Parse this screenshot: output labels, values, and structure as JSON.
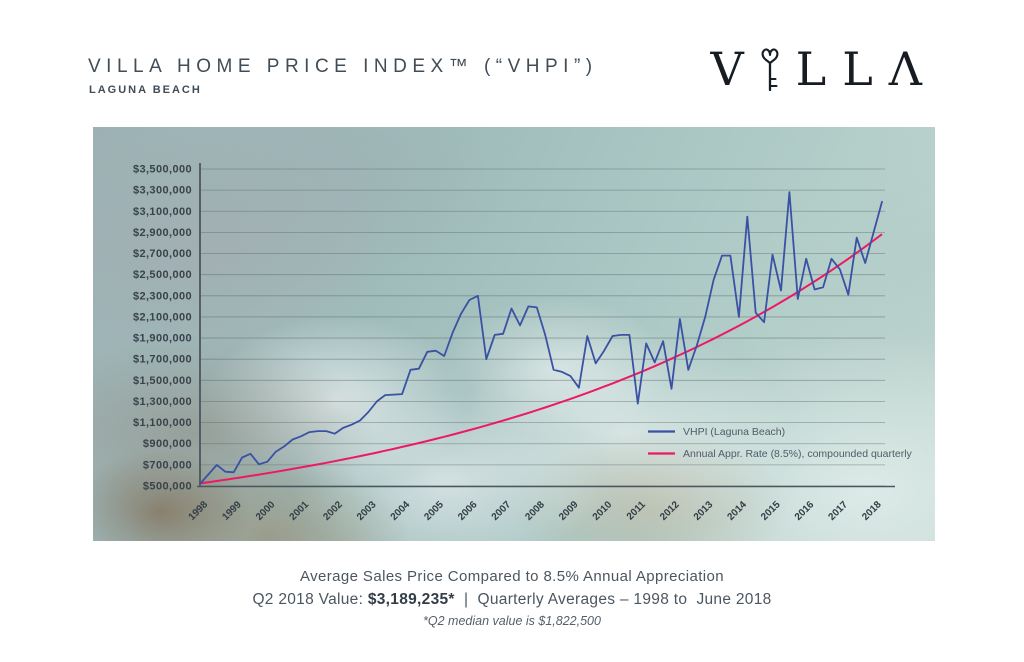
{
  "header": {
    "title": "VILLA HOME PRICE INDEX™ (“VHPI”)",
    "subtitle": "LAGUNA BEACH",
    "logo": {
      "text": "VILLA",
      "l1": "V",
      "l2": "L",
      "l3": "L",
      "l4": "Λ",
      "icon": "key-icon"
    }
  },
  "caption": {
    "line1": "Average Sales Price Compared to 8.5% Annual Appreciation",
    "line2_prefix": "Q2 2018 Value: ",
    "line2_value": "$3,189,235*",
    "line2_suffix": "  |  Quarterly Averages – 1998 to  June 2018",
    "footnote": "*Q2 median value is $1,822,500"
  },
  "chart_data": {
    "type": "line",
    "x_years": [
      1998,
      1999,
      2000,
      2001,
      2002,
      2003,
      2004,
      2005,
      2006,
      2007,
      2008,
      2009,
      2010,
      2011,
      2012,
      2013,
      2014,
      2015,
      2016,
      2017,
      2018
    ],
    "x_frequency": "quarterly",
    "x_start": "1998 Q1",
    "x_end": "2018 Q2",
    "ylim": [
      500000,
      3500000
    ],
    "y_tick_values": [
      500000,
      700000,
      900000,
      1100000,
      1300000,
      1500000,
      1700000,
      1900000,
      2100000,
      2300000,
      2500000,
      2700000,
      2900000,
      3100000,
      3300000,
      3500000
    ],
    "y_ticks": [
      "$500,000",
      "$700,000",
      "$900,000",
      "$1,100,000",
      "$1,300,000",
      "$1,500,000",
      "$1,700,000",
      "$1,900,000",
      "$2,100,000",
      "$2,300,000",
      "$2,500,000",
      "$2,700,000",
      "$2,900,000",
      "$3,100,000",
      "$3,300,000",
      "$3,500,000"
    ],
    "grid": true,
    "legend_position": "inside-bottom-right",
    "series": [
      {
        "name": "VHPI (Laguna Beach)",
        "color": "#3a51a4",
        "values": [
          520000,
          610000,
          700000,
          635000,
          630000,
          770000,
          805000,
          705000,
          730000,
          825000,
          875000,
          940000,
          970000,
          1010000,
          1020000,
          1020000,
          995000,
          1050000,
          1080000,
          1120000,
          1200000,
          1300000,
          1360000,
          1365000,
          1370000,
          1600000,
          1610000,
          1770000,
          1780000,
          1730000,
          1950000,
          2130000,
          2260000,
          2300000,
          1700000,
          1930000,
          1940000,
          2180000,
          2020000,
          2200000,
          2190000,
          1930000,
          1600000,
          1580000,
          1540000,
          1430000,
          1920000,
          1660000,
          1780000,
          1920000,
          1930000,
          1930000,
          1280000,
          1850000,
          1670000,
          1870000,
          1420000,
          2080000,
          1600000,
          1830000,
          2100000,
          2450000,
          2680000,
          2680000,
          2100000,
          3050000,
          2140000,
          2050000,
          2690000,
          2350000,
          3280000,
          2270000,
          2650000,
          2360000,
          2380000,
          2650000,
          2550000,
          2310000,
          2850000,
          2610000,
          2900000,
          3189235
        ]
      },
      {
        "name": "Annual Appr. Rate (8.5%), compounded quarterly",
        "color": "#ec1a64",
        "start": 525000,
        "quarterly_rate_pct": 2.125,
        "note": "value(q) = start × (1 + 0.085/4)^q"
      }
    ]
  }
}
